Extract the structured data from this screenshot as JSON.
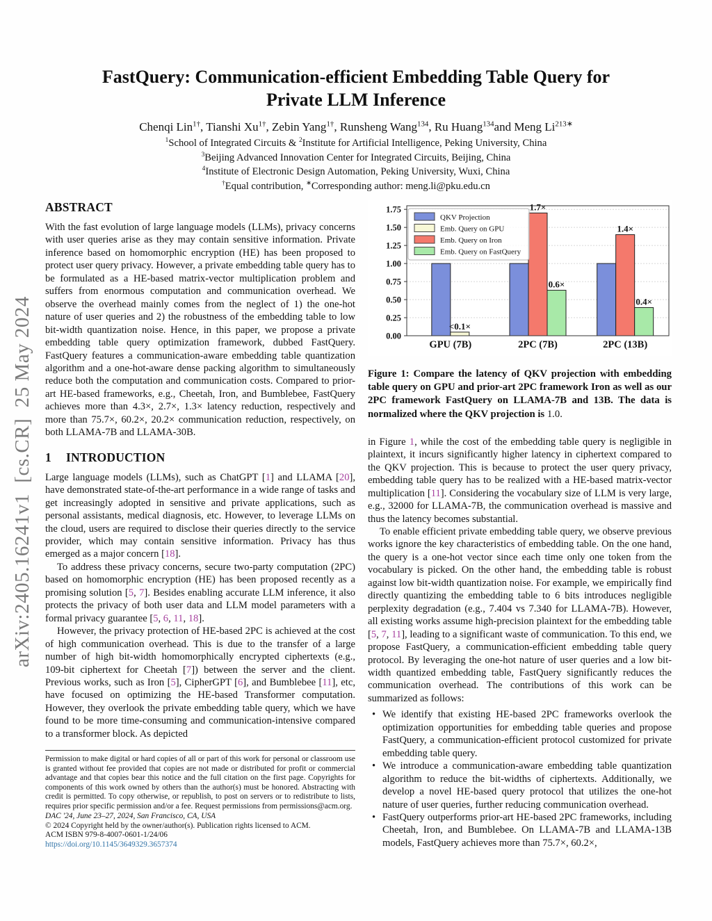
{
  "watermark": "arXiv:2405.16241v1  [cs.CR]  25 May 2024",
  "title_lines": [
    "FastQuery: Communication-efficient Embedding Table Query for",
    "Private LLM Inference"
  ],
  "authors_line": "Chenqi Lin^{1†}, Tianshi Xu^{1†}, Zebin Yang^{1†}, Runsheng Wang^{134}, Ru Huang^{134}and Meng Li^{213∗}",
  "affiliations": [
    "^{1}School of Integrated Circuits & ^{2}Institute for Artificial Intelligence, Peking University, China",
    "^{3}Beijing Advanced Innovation Center for Integrated Circuits, Beijing, China",
    "^{4}Institute of Electronic Design Automation, Peking University, Wuxi, China",
    "^{†}Equal contribution, ^{∗}Corresponding author: meng.li@pku.edu.cn"
  ],
  "left_column": {
    "abstract_heading": "ABSTRACT",
    "abstract_paras": [
      {
        "indent": false,
        "text": "With the fast evolution of large language models (LLMs), privacy concerns with user queries arise as they may contain sensitive information. Private inference based on homomorphic encryption (HE) has been proposed to protect user query privacy. However, a private embedding table query has to be formulated as a HE-based matrix-vector multiplication problem and suffers from enormous computation and communication overhead. We observe the overhead mainly comes from the neglect of 1) the one-hot nature of user queries and 2) the robustness of the embedding table to low bit-width quantization noise. Hence, in this paper, we propose a private embedding table query optimization framework, dubbed FastQuery. FastQuery features a communication-aware embedding table quantization algorithm and a one-hot-aware dense packing algorithm to simultaneously reduce both the computation and communication costs. Compared to prior-art HE-based frameworks, e.g., Cheetah, Iron, and Bumblebee, FastQuery achieves more than 4.3×, 2.7×, 1.3× latency reduction, respectively and more than 75.7×, 60.2×, 20.2× communication reduction, respectively, on both LLAMA-7B and LLAMA-30B."
      }
    ],
    "intro_number": "1",
    "intro_heading": "INTRODUCTION",
    "paragraphs": [
      {
        "indent": false,
        "text": "Large language models (LLMs), such as ChatGPT [~{1}] and LLAMA [~{20}], have demonstrated state-of-the-art performance in a wide range of tasks and get increasingly adopted in sensitive and private applications, such as personal assistants, medical diagnosis, etc. However, to leverage LLMs on the cloud, users are required to disclose their queries directly to the service provider, which may contain sensitive information. Privacy has thus emerged as a major concern [~{18}]."
      },
      {
        "indent": true,
        "text": "To address these privacy concerns, secure two-party computation (2PC) based on homomorphic encryption (HE) has been proposed recently as a promising solution [~{5}, ~{7}]. Besides enabling accurate LLM inference, it also protects the privacy of both user data and LLM model parameters with a formal privacy guarantee [~{5}, ~{6}, ~{11}, ~{18}]."
      },
      {
        "indent": true,
        "text": "However, the privacy protection of HE-based 2PC is achieved at the cost of high communication overhead. This is due to the transfer of a large number of high bit-width homomorphically encrypted ciphertexts (e.g., 109-bit ciphertext for Cheetah [~{7}]) between the server and the client. Previous works, such as Iron [~{5}], CipherGPT [~{6}], and Bumblebee [~{11}], etc, have focused on optimizing the HE-based Transformer computation. However, they overlook the private embedding table query, which we have found to be more time-consuming and communication-intensive compared to a transformer block. As depicted"
      }
    ]
  },
  "footnote": {
    "permission": "Permission to make digital or hard copies of all or part of this work for personal or classroom use is granted without fee provided that copies are not made or distributed for profit or commercial advantage and that copies bear this notice and the full citation on the first page. Copyrights for components of this work owned by others than the author(s) must be honored. Abstracting with credit is permitted. To copy otherwise, or republish, to post on servers or to redistribute to lists, requires prior specific permission and/or a fee. Request permissions from permissions@acm.org.",
    "venue": "DAC '24, June 23–27, 2024, San Francisco, CA, USA",
    "copyright": "© 2024 Copyright held by the owner/author(s). Publication rights licensed to ACM.",
    "isbn": "ACM ISBN 979-8-4007-0601-1/24/06",
    "doi": "https://doi.org/10.1145/3649329.3657374"
  },
  "figure": {
    "caption_bold": "Figure 1: Compare the latency of QKV projection with embedding table query on GPU and prior-art 2PC framework Iron as well as our 2PC framework FastQuery on LLAMA-7B and 13B. The data is normalized where the QKV projection is",
    "caption_tail": "1.0."
  },
  "chart_data": {
    "type": "bar",
    "title": "",
    "xlabel": "",
    "ylabel": "",
    "categories": [
      "GPU (7B)",
      "2PC (7B)",
      "2PC (13B)"
    ],
    "series": [
      {
        "name": "QKV Projection",
        "color": "#7b8fdb",
        "values": [
          1.0,
          1.0,
          1.0
        ]
      },
      {
        "name": "Emb. Query on GPU",
        "color": "#f8f8d6",
        "values": [
          0.05,
          null,
          null
        ]
      },
      {
        "name": "Emb. Query on Iron",
        "color": "#f4796c",
        "values": [
          null,
          1.7,
          1.4
        ]
      },
      {
        "name": "Emb. Query on FastQuery",
        "color": "#a8e9a8",
        "values": [
          null,
          0.63,
          0.39
        ]
      }
    ],
    "annotations": [
      {
        "cat": 0,
        "series": 1,
        "label": "<0.1×"
      },
      {
        "cat": 1,
        "series": 2,
        "label": "1.7×"
      },
      {
        "cat": 1,
        "series": 3,
        "label": "0.6×"
      },
      {
        "cat": 2,
        "series": 2,
        "label": "1.4×"
      },
      {
        "cat": 2,
        "series": 3,
        "label": "0.4×"
      }
    ],
    "ylim": [
      0,
      1.8
    ],
    "yticks": [
      "0.00",
      "0.25",
      "0.50",
      "0.75",
      "1.00",
      "1.25",
      "1.50",
      "1.75"
    ],
    "grid": true,
    "legend_position": "upper left",
    "edge_color": "#222222"
  },
  "right_column": {
    "paragraphs": [
      {
        "indent": false,
        "text": "in Figure ~{1}, while the cost of the embedding table query is negligible in plaintext, it incurs significantly higher latency in ciphertext compared to the QKV projection. This is because to protect the user query privacy, embedding table query has to be realized with a HE-based matrix-vector multiplication [~{11}]. Considering the vocabulary size of LLM is very large, e.g., 32000 for LLAMA-7B, the communication overhead is massive and thus the latency becomes substantial."
      },
      {
        "indent": true,
        "text": "To enable efficient private embedding table query, we observe previous works ignore the key characteristics of embedding table. On the one hand, the query is a one-hot vector since each time only one token from the vocabulary is picked. On the other hand, the embedding table is robust against low bit-width quantization noise. For example, we empirically find directly quantizing the embedding table to 6 bits introduces negligible perplexity degradation (e.g., 7.404 vs 7.340 for LLAMA-7B). However, all existing works assume high-precision plaintext for the embedding table [~{5}, ~{7}, ~{11}], leading to a significant waste of communication. To this end, we propose FastQuery, a communication-efficient embedding table query protocol. By leveraging the one-hot nature of user queries and a low bit-width quantized embedding table, FastQuery significantly reduces the communication overhead. The contributions of this work can be summarized as follows:"
      }
    ],
    "bullets": [
      "We identify that existing HE-based 2PC frameworks overlook the optimization opportunities for embedding table queries and propose FastQuery, a communication-efficient protocol customized for private embedding table query.",
      "We introduce a communication-aware embedding table quantization algorithm to reduce the bit-widths of ciphertexts. Additionally, we develop a novel HE-based query protocol that utilizes the one-hot nature of user queries, further reducing communication overhead.",
      "FastQuery outperforms prior-art HE-based 2PC frameworks, including Cheetah, Iron, and Bumblebee. On LLAMA-7B and LLAMA-13B models, FastQuery achieves more than 75.7×, 60.2×,"
    ]
  }
}
